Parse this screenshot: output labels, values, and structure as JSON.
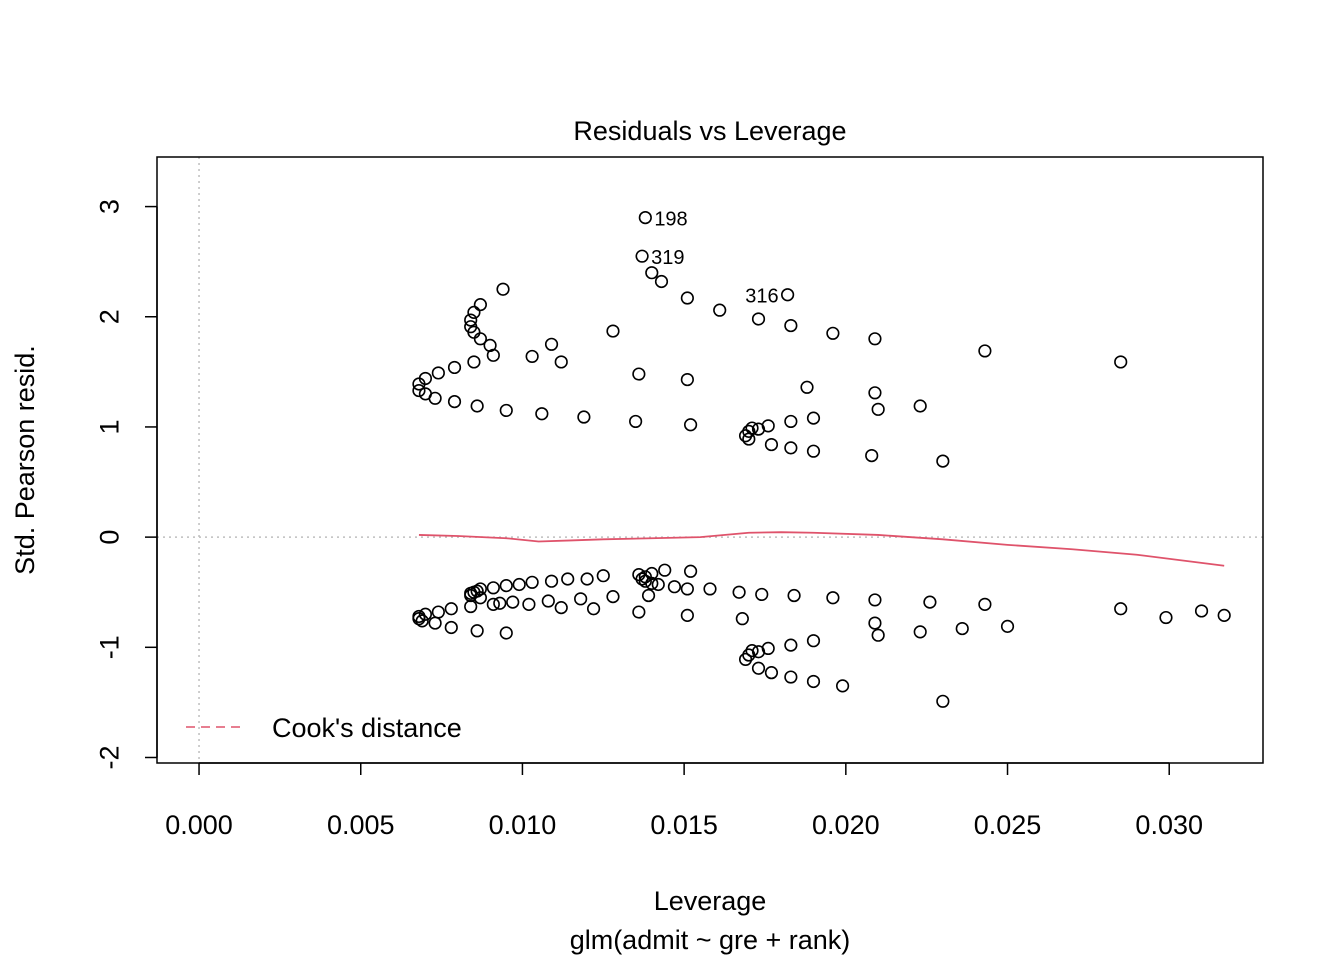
{
  "chart_data": {
    "type": "scatter",
    "title": "Residuals vs Leverage",
    "xlabel": "Leverage",
    "subtitle": "glm(admit ~ gre + rank)",
    "ylabel": "Std. Pearson resid.",
    "xlim": [
      -0.0013,
      0.0329
    ],
    "ylim": [
      -2.05,
      3.45
    ],
    "x_ticks": [
      "0.000",
      "0.005",
      "0.010",
      "0.015",
      "0.020",
      "0.025",
      "0.030"
    ],
    "y_ticks": [
      "-2",
      "-1",
      "0",
      "1",
      "2",
      "3"
    ],
    "grid": false,
    "reference_lines": {
      "horizontal_y": 0,
      "vertical_x": 0
    },
    "legend": {
      "placement": "bottom-left",
      "entries": [
        "Cook's distance"
      ]
    },
    "colors": {
      "points": "#000000",
      "smooth": "#DF536B",
      "reference": "#BEBEBE",
      "legend_line": "#DF536B"
    },
    "annotations": [
      {
        "label": "198",
        "x": 0.0138,
        "y": 2.9
      },
      {
        "label": "319",
        "x": 0.0137,
        "y": 2.55
      },
      {
        "label": "316",
        "x": 0.0182,
        "y": 2.2
      }
    ],
    "series": [
      {
        "values": [
          [
            0.0138,
            2.9
          ],
          [
            0.0137,
            2.55
          ],
          [
            0.0182,
            2.2
          ],
          [
            0.0094,
            2.25
          ],
          [
            0.014,
            2.4
          ],
          [
            0.0143,
            2.32
          ],
          [
            0.0151,
            2.17
          ],
          [
            0.0161,
            2.06
          ],
          [
            0.0087,
            2.11
          ],
          [
            0.0173,
            1.98
          ],
          [
            0.0085,
            2.04
          ],
          [
            0.0183,
            1.92
          ],
          [
            0.0084,
            1.97
          ],
          [
            0.0084,
            1.91
          ],
          [
            0.0128,
            1.87
          ],
          [
            0.0196,
            1.85
          ],
          [
            0.0085,
            1.86
          ],
          [
            0.0209,
            1.8
          ],
          [
            0.0087,
            1.8
          ],
          [
            0.009,
            1.74
          ],
          [
            0.0109,
            1.75
          ],
          [
            0.0243,
            1.69
          ],
          [
            0.0091,
            1.65
          ],
          [
            0.0103,
            1.64
          ],
          [
            0.0285,
            1.59
          ],
          [
            0.0112,
            1.59
          ],
          [
            0.0085,
            1.59
          ],
          [
            0.0079,
            1.54
          ],
          [
            0.0074,
            1.49
          ],
          [
            0.0136,
            1.48
          ],
          [
            0.007,
            1.44
          ],
          [
            0.0151,
            1.43
          ],
          [
            0.0068,
            1.39
          ],
          [
            0.0188,
            1.36
          ],
          [
            0.0068,
            1.33
          ],
          [
            0.007,
            1.3
          ],
          [
            0.0209,
            1.31
          ],
          [
            0.0073,
            1.26
          ],
          [
            0.0079,
            1.23
          ],
          [
            0.0223,
            1.19
          ],
          [
            0.0086,
            1.19
          ],
          [
            0.0095,
            1.15
          ],
          [
            0.021,
            1.16
          ],
          [
            0.0106,
            1.12
          ],
          [
            0.0119,
            1.09
          ],
          [
            0.019,
            1.08
          ],
          [
            0.0183,
            1.05
          ],
          [
            0.0135,
            1.05
          ],
          [
            0.0152,
            1.02
          ],
          [
            0.0176,
            1.01
          ],
          [
            0.0173,
            0.98
          ],
          [
            0.0171,
            0.99
          ],
          [
            0.017,
            0.96
          ],
          [
            0.0169,
            0.92
          ],
          [
            0.017,
            0.89
          ],
          [
            0.0177,
            0.84
          ],
          [
            0.0183,
            0.81
          ],
          [
            0.019,
            0.78
          ],
          [
            0.0208,
            0.74
          ],
          [
            0.023,
            0.69
          ],
          [
            0.0136,
            -0.34
          ],
          [
            0.0138,
            -0.36
          ],
          [
            0.0137,
            -0.38
          ],
          [
            0.0138,
            -0.4
          ],
          [
            0.014,
            -0.42
          ],
          [
            0.0144,
            -0.3
          ],
          [
            0.014,
            -0.33
          ],
          [
            0.0152,
            -0.31
          ],
          [
            0.0125,
            -0.35
          ],
          [
            0.012,
            -0.38
          ],
          [
            0.0114,
            -0.38
          ],
          [
            0.0109,
            -0.4
          ],
          [
            0.0103,
            -0.41
          ],
          [
            0.0099,
            -0.43
          ],
          [
            0.0095,
            -0.44
          ],
          [
            0.0091,
            -0.46
          ],
          [
            0.0087,
            -0.47
          ],
          [
            0.0086,
            -0.49
          ],
          [
            0.0085,
            -0.5
          ],
          [
            0.0084,
            -0.51
          ],
          [
            0.0084,
            -0.53
          ],
          [
            0.0087,
            -0.55
          ],
          [
            0.0142,
            -0.43
          ],
          [
            0.0147,
            -0.45
          ],
          [
            0.0151,
            -0.47
          ],
          [
            0.0158,
            -0.47
          ],
          [
            0.0167,
            -0.5
          ],
          [
            0.0174,
            -0.52
          ],
          [
            0.0184,
            -0.53
          ],
          [
            0.0196,
            -0.55
          ],
          [
            0.0209,
            -0.57
          ],
          [
            0.0226,
            -0.59
          ],
          [
            0.0243,
            -0.61
          ],
          [
            0.0285,
            -0.65
          ],
          [
            0.031,
            -0.67
          ],
          [
            0.0317,
            -0.71
          ],
          [
            0.0299,
            -0.73
          ],
          [
            0.025,
            -0.81
          ],
          [
            0.0236,
            -0.83
          ],
          [
            0.0223,
            -0.86
          ],
          [
            0.021,
            -0.89
          ],
          [
            0.0209,
            -0.78
          ],
          [
            0.0151,
            -0.71
          ],
          [
            0.0168,
            -0.74
          ],
          [
            0.0136,
            -0.68
          ],
          [
            0.0122,
            -0.65
          ],
          [
            0.0112,
            -0.64
          ],
          [
            0.0102,
            -0.61
          ],
          [
            0.0097,
            -0.59
          ],
          [
            0.0093,
            -0.6
          ],
          [
            0.0091,
            -0.61
          ],
          [
            0.0084,
            -0.63
          ],
          [
            0.0078,
            -0.65
          ],
          [
            0.0074,
            -0.68
          ],
          [
            0.007,
            -0.7
          ],
          [
            0.0068,
            -0.72
          ],
          [
            0.0068,
            -0.74
          ],
          [
            0.0069,
            -0.76
          ],
          [
            0.0073,
            -0.78
          ],
          [
            0.0078,
            -0.82
          ],
          [
            0.0086,
            -0.85
          ],
          [
            0.0095,
            -0.87
          ],
          [
            0.0108,
            -0.58
          ],
          [
            0.0118,
            -0.56
          ],
          [
            0.0128,
            -0.54
          ],
          [
            0.0139,
            -0.53
          ],
          [
            0.019,
            -0.94
          ],
          [
            0.0183,
            -0.98
          ],
          [
            0.0176,
            -1.01
          ],
          [
            0.0173,
            -1.04
          ],
          [
            0.0171,
            -1.03
          ],
          [
            0.017,
            -1.07
          ],
          [
            0.0169,
            -1.11
          ],
          [
            0.0173,
            -1.19
          ],
          [
            0.0177,
            -1.23
          ],
          [
            0.0183,
            -1.27
          ],
          [
            0.019,
            -1.31
          ],
          [
            0.0199,
            -1.35
          ],
          [
            0.023,
            -1.49
          ]
        ]
      }
    ],
    "smooth_line": [
      [
        0.0068,
        0.02
      ],
      [
        0.008,
        0.01
      ],
      [
        0.0095,
        -0.01
      ],
      [
        0.0105,
        -0.04
      ],
      [
        0.0115,
        -0.03
      ],
      [
        0.0125,
        -0.02
      ],
      [
        0.014,
        -0.01
      ],
      [
        0.0155,
        0.0
      ],
      [
        0.017,
        0.04
      ],
      [
        0.018,
        0.045
      ],
      [
        0.019,
        0.04
      ],
      [
        0.021,
        0.02
      ],
      [
        0.023,
        -0.02
      ],
      [
        0.025,
        -0.07
      ],
      [
        0.027,
        -0.11
      ],
      [
        0.029,
        -0.16
      ],
      [
        0.0317,
        -0.26
      ]
    ]
  }
}
